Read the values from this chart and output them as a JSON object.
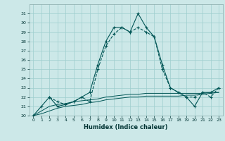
{
  "title": "",
  "xlabel": "Humidex (Indice chaleur)",
  "ylabel": "",
  "bg_color": "#cce8e8",
  "grid_color": "#9ecece",
  "line_color": "#005555",
  "xlim": [
    -0.5,
    23.5
  ],
  "ylim": [
    20,
    32
  ],
  "yticks": [
    20,
    21,
    22,
    23,
    24,
    25,
    26,
    27,
    28,
    29,
    30,
    31
  ],
  "xticks": [
    0,
    1,
    2,
    3,
    4,
    5,
    6,
    7,
    8,
    9,
    10,
    11,
    12,
    13,
    14,
    15,
    16,
    17,
    18,
    19,
    20,
    21,
    22,
    23
  ],
  "series1_x": [
    0,
    1,
    2,
    3,
    4,
    5,
    6,
    7,
    8,
    9,
    10,
    11,
    12,
    13,
    14,
    15,
    16,
    17,
    18,
    19,
    20,
    21,
    22,
    23
  ],
  "series1_y": [
    20.0,
    21.0,
    22.0,
    21.0,
    21.2,
    21.5,
    22.0,
    22.5,
    25.5,
    28.0,
    29.5,
    29.5,
    29.0,
    31.0,
    29.5,
    28.5,
    25.5,
    23.0,
    22.5,
    22.0,
    21.0,
    22.5,
    22.5,
    23.0
  ],
  "series2_x": [
    2,
    3,
    4,
    5,
    6,
    7,
    8,
    9,
    10,
    11,
    12,
    13,
    14,
    15,
    16,
    17,
    18,
    19,
    20,
    21,
    22,
    23
  ],
  "series2_y": [
    22.0,
    21.5,
    21.2,
    21.5,
    22.0,
    21.5,
    25.0,
    27.5,
    28.8,
    29.5,
    29.0,
    29.5,
    29.0,
    28.5,
    25.0,
    23.0,
    22.5,
    22.0,
    22.0,
    22.5,
    22.0,
    23.0
  ],
  "series3_x": [
    0,
    1,
    2,
    3,
    4,
    5,
    6,
    7,
    8,
    9,
    10,
    11,
    12,
    13,
    14,
    15,
    16,
    17,
    18,
    19,
    20,
    21,
    22,
    23
  ],
  "series3_y": [
    20.0,
    20.5,
    21.0,
    21.2,
    21.3,
    21.5,
    21.6,
    21.7,
    21.8,
    22.0,
    22.1,
    22.2,
    22.3,
    22.3,
    22.4,
    22.4,
    22.4,
    22.4,
    22.4,
    22.4,
    22.4,
    22.4,
    22.5,
    22.5
  ],
  "series4_x": [
    0,
    1,
    2,
    3,
    4,
    5,
    6,
    7,
    8,
    9,
    10,
    11,
    12,
    13,
    14,
    15,
    16,
    17,
    18,
    19,
    20,
    21,
    22,
    23
  ],
  "series4_y": [
    20.0,
    20.2,
    20.5,
    20.8,
    21.0,
    21.1,
    21.2,
    21.4,
    21.5,
    21.7,
    21.8,
    21.9,
    22.0,
    22.0,
    22.1,
    22.1,
    22.1,
    22.1,
    22.1,
    22.2,
    22.2,
    22.3,
    22.4,
    22.5
  ],
  "marker": "+",
  "markersize": 3,
  "linewidth": 0.8
}
